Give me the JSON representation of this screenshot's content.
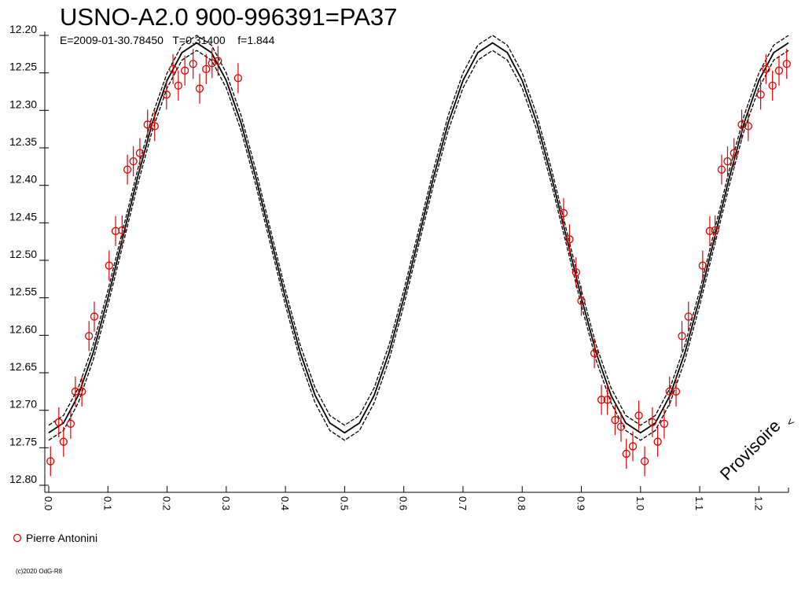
{
  "chart_data": {
    "type": "scatter",
    "title": "USNO-A2.0 900-996391=PA37",
    "subtitle": "E=2009-01-30.78450   T=0.31400    f=1.844",
    "watermark": "Provisoire",
    "watermark_marker": "<",
    "copyright": "(c)2020 OdG-R8",
    "xlim": [
      0,
      1.25
    ],
    "ylim": [
      12.8,
      12.2
    ],
    "xticks": [
      {
        "value": 0,
        "label": "0.0"
      },
      0.1,
      0.2,
      0.3,
      0.4,
      0.5,
      0.6,
      0.7,
      0.8,
      0.9,
      {
        "value": 1,
        "label": "1.0"
      },
      1.1,
      1.2
    ],
    "yticks": [
      {
        "value": 12.2,
        "label": "12.20"
      },
      12.25,
      {
        "value": 12.3,
        "label": "12.30"
      },
      12.35,
      {
        "value": 12.4,
        "label": "12.40"
      },
      12.45,
      {
        "value": 12.5,
        "label": "12.50"
      },
      12.55,
      {
        "value": 12.6,
        "label": "12.60"
      },
      12.65,
      {
        "value": 12.7,
        "label": "12.70"
      },
      12.75,
      {
        "value": 12.8,
        "label": "12.80"
      }
    ],
    "curve_x": [
      0,
      0.025,
      0.05,
      0.075,
      0.1,
      0.125,
      0.15,
      0.175,
      0.2,
      0.225,
      0.25,
      0.275,
      0.3,
      0.325,
      0.35,
      0.375,
      0.4,
      0.425,
      0.45,
      0.475,
      0.5,
      0.525,
      0.55,
      0.575,
      0.6,
      0.625,
      0.65,
      0.675,
      0.7,
      0.725,
      0.75,
      0.775,
      0.8,
      0.825,
      0.85,
      0.875,
      0.9,
      0.925,
      0.95,
      0.975,
      1,
      1.025,
      1.05,
      1.075,
      1.1,
      1.125,
      1.15,
      1.175,
      1.2,
      1.225,
      1.25
    ],
    "curves": [
      {
        "color": "#000000",
        "dashed": false,
        "values": [
          12.73,
          12.717,
          12.68,
          12.623,
          12.55,
          12.47,
          12.39,
          12.317,
          12.26,
          12.223,
          12.21,
          12.223,
          12.26,
          12.317,
          12.39,
          12.47,
          12.55,
          12.623,
          12.68,
          12.717,
          12.73,
          12.717,
          12.68,
          12.623,
          12.55,
          12.47,
          12.39,
          12.317,
          12.26,
          12.223,
          12.21,
          12.223,
          12.26,
          12.317,
          12.39,
          12.47,
          12.55,
          12.623,
          12.68,
          12.717,
          12.73,
          12.717,
          12.68,
          12.623,
          12.55,
          12.47,
          12.39,
          12.317,
          12.26,
          12.223,
          12.21
        ]
      },
      {
        "color": "#000000",
        "dashed": true,
        "values": [
          12.72,
          12.707,
          12.67,
          12.613,
          12.54,
          12.46,
          12.38,
          12.307,
          12.25,
          12.213,
          12.2,
          12.213,
          12.25,
          12.307,
          12.38,
          12.46,
          12.54,
          12.613,
          12.67,
          12.707,
          12.72,
          12.707,
          12.67,
          12.613,
          12.54,
          12.46,
          12.38,
          12.307,
          12.25,
          12.213,
          12.2,
          12.213,
          12.25,
          12.307,
          12.38,
          12.46,
          12.54,
          12.613,
          12.67,
          12.707,
          12.72,
          12.707,
          12.67,
          12.613,
          12.54,
          12.46,
          12.38,
          12.307,
          12.25,
          12.213,
          12.2
        ]
      },
      {
        "color": "#000000",
        "dashed": true,
        "values": [
          12.74,
          12.727,
          12.69,
          12.633,
          12.56,
          12.48,
          12.4,
          12.327,
          12.27,
          12.233,
          12.22,
          12.233,
          12.27,
          12.327,
          12.4,
          12.48,
          12.56,
          12.633,
          12.69,
          12.727,
          12.74,
          12.727,
          12.69,
          12.633,
          12.56,
          12.48,
          12.4,
          12.327,
          12.27,
          12.233,
          12.22,
          12.233,
          12.27,
          12.327,
          12.4,
          12.48,
          12.56,
          12.633,
          12.69,
          12.727,
          12.74,
          12.727,
          12.69,
          12.633,
          12.56,
          12.48,
          12.4,
          12.327,
          12.27,
          12.233,
          12.22
        ]
      }
    ],
    "series": [
      {
        "name": "Pierre Antonini",
        "color": "#e00000",
        "error": 0.02,
        "x": [
          0.003,
          0.017,
          0.025,
          0.037,
          0.045,
          0.056,
          0.068,
          0.077,
          0.102,
          0.113,
          0.124,
          0.133,
          0.143,
          0.154,
          0.167,
          0.179,
          0.199,
          0.21,
          0.219,
          0.23,
          0.244,
          0.255,
          0.266,
          0.276,
          0.286,
          0.32,
          0.87,
          0.88,
          0.891,
          0.9,
          0.922,
          0.934,
          0.944,
          0.957,
          0.967,
          0.976,
          0.987,
          0.997,
          1.007,
          1.02,
          1.029,
          1.04,
          1.049,
          1.06,
          1.07,
          1.081,
          1.105,
          1.117,
          1.126,
          1.137,
          1.147,
          1.158,
          1.171,
          1.182,
          1.203,
          1.212,
          1.223,
          1.234,
          1.247
        ],
        "values": [
          12.768,
          12.716,
          12.742,
          12.718,
          12.675,
          12.675,
          12.601,
          12.575,
          12.507,
          12.461,
          12.46,
          12.379,
          12.368,
          12.357,
          12.319,
          12.321,
          12.279,
          12.245,
          12.267,
          12.247,
          12.238,
          12.271,
          12.245,
          12.237,
          12.234,
          12.257,
          12.437,
          12.472,
          12.516,
          12.554,
          12.624,
          12.686,
          12.686,
          12.713,
          12.722,
          12.758,
          12.748,
          12.707,
          12.768,
          12.716,
          12.742,
          12.718,
          12.675,
          12.675,
          12.601,
          12.575,
          12.507,
          12.461,
          12.46,
          12.379,
          12.368,
          12.357,
          12.319,
          12.321,
          12.279,
          12.245,
          12.267,
          12.247,
          12.238
        ]
      }
    ]
  }
}
